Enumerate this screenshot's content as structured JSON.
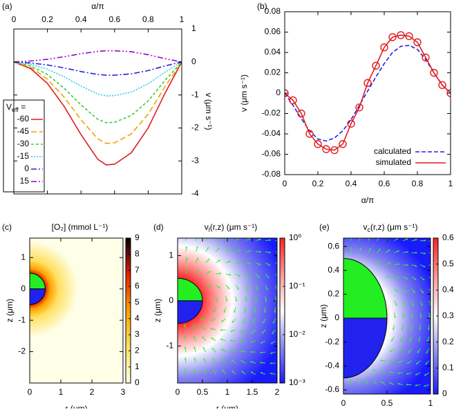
{
  "chart_data": [
    {
      "type": "line",
      "label": "(a)",
      "x_label": "α/π",
      "y_label": "v (μm s⁻¹)",
      "x_axis_position": "top",
      "y_axis_position": "right",
      "xlim": [
        0,
        1
      ],
      "ylim": [
        -4,
        1
      ],
      "xticks": [
        0,
        0.2,
        0.4,
        0.6,
        0.8,
        1
      ],
      "yticks": [
        1,
        0,
        -1,
        -2,
        -3,
        -4
      ],
      "legend_title": "V",
      "legend_title_sub": "eff",
      "legend_title_rest": " =",
      "legend_position": "bottom left",
      "x": [
        0,
        0.1,
        0.2,
        0.3,
        0.4,
        0.5,
        0.55,
        0.6,
        0.7,
        0.8,
        0.9,
        1
      ],
      "series": [
        {
          "name": "-60",
          "color": "#e31a1c",
          "dash": "",
          "values": [
            0,
            -0.2,
            -0.65,
            -1.35,
            -2.2,
            -2.95,
            -3.12,
            -3.1,
            -2.75,
            -2.0,
            -0.95,
            0
          ]
        },
        {
          "name": "-45",
          "color": "#f0a000",
          "dash": "8,4",
          "values": [
            0,
            -0.16,
            -0.52,
            -1.07,
            -1.75,
            -2.33,
            -2.47,
            -2.45,
            -2.18,
            -1.58,
            -0.75,
            0
          ]
        },
        {
          "name": "-30",
          "color": "#33cc33",
          "dash": "4,3",
          "values": [
            0,
            -0.12,
            -0.38,
            -0.8,
            -1.3,
            -1.74,
            -1.84,
            -1.83,
            -1.62,
            -1.18,
            -0.56,
            0
          ]
        },
        {
          "name": "-15",
          "color": "#22ccee",
          "dash": "2,2",
          "values": [
            0,
            -0.07,
            -0.22,
            -0.45,
            -0.73,
            -0.97,
            -1.03,
            -1.02,
            -0.91,
            -0.66,
            -0.31,
            0
          ]
        },
        {
          "name": "0",
          "color": "#2222dd",
          "dash": "8,3,2,3",
          "values": [
            0,
            -0.03,
            -0.09,
            -0.18,
            -0.29,
            -0.38,
            -0.4,
            -0.4,
            -0.36,
            -0.26,
            -0.12,
            0
          ]
        },
        {
          "name": "15",
          "color": "#9900cc",
          "dash": "8,3,2,3,2,3",
          "values": [
            0,
            0.03,
            0.08,
            0.16,
            0.25,
            0.32,
            0.34,
            0.34,
            0.31,
            0.22,
            0.1,
            0
          ]
        }
      ]
    },
    {
      "type": "line",
      "label": "(b)",
      "x_label": "α/π",
      "y_label": "v (μm s⁻¹)",
      "legend_position": "bottom right",
      "xlim": [
        0,
        1
      ],
      "ylim": [
        -0.08,
        0.08
      ],
      "xticks": [
        0,
        0.2,
        0.4,
        0.6,
        0.8,
        1
      ],
      "yticks": [
        -0.08,
        -0.06,
        -0.04,
        -0.02,
        0,
        0.02,
        0.04,
        0.06,
        0.08
      ],
      "x": [
        0,
        0.05,
        0.1,
        0.15,
        0.2,
        0.25,
        0.3,
        0.35,
        0.4,
        0.45,
        0.5,
        0.55,
        0.6,
        0.65,
        0.7,
        0.75,
        0.8,
        0.85,
        0.9,
        0.95,
        1
      ],
      "series": [
        {
          "name": "calculated",
          "color": "#2222dd",
          "dash": "6,3",
          "marker": "none",
          "values": [
            0,
            -0.012,
            -0.025,
            -0.037,
            -0.045,
            -0.047,
            -0.044,
            -0.037,
            -0.026,
            -0.012,
            0.002,
            0.016,
            0.029,
            0.04,
            0.046,
            0.047,
            0.043,
            0.033,
            0.02,
            0.008,
            0
          ]
        },
        {
          "name": "simulated",
          "color": "#e31a1c",
          "dash": "",
          "marker": "circle",
          "values": [
            0,
            -0.007,
            -0.02,
            -0.04,
            -0.05,
            -0.055,
            -0.056,
            -0.05,
            -0.03,
            -0.014,
            0.01,
            0.027,
            0.045,
            0.055,
            0.057,
            0.056,
            0.05,
            0.035,
            0.02,
            0.008,
            0
          ]
        }
      ]
    },
    {
      "type": "heatmap",
      "label": "(c)",
      "title": "[O₂] (mmol L⁻¹)",
      "x_label": "r (μm)",
      "y_label": "z (μm)",
      "xlim": [
        0,
        3
      ],
      "ylim": [
        -3,
        1.62
      ],
      "xticks": [
        0,
        1,
        2,
        3
      ],
      "yticks": [
        1,
        0,
        -1,
        -2
      ],
      "clim": [
        0,
        9
      ],
      "cticks": [
        0,
        1,
        2,
        3,
        4,
        5,
        6,
        7,
        8,
        9
      ],
      "colors": [
        "#ffffe8",
        "#ffe060",
        "#ffa000",
        "#e02000",
        "#000000"
      ]
    },
    {
      "type": "heatmap",
      "label": "(d)",
      "title": "v",
      "title_sub": "l",
      "title_rest": "(r,z) (μm s⁻¹)",
      "x_label": "r (μm)",
      "y_label": "z (μm)",
      "xlim": [
        0,
        2
      ],
      "ylim": [
        -1.82,
        1.39
      ],
      "xticks": [
        0,
        0.5,
        1,
        1.5,
        2
      ],
      "yticks": [
        1,
        0,
        -1
      ],
      "clim": [
        0.001,
        1
      ],
      "clog": true,
      "arrows": true,
      "cticks": [
        {
          "value": 1,
          "label": "10⁰"
        },
        {
          "value": 0.1,
          "label": "10⁻¹"
        },
        {
          "value": 0.01,
          "label": "10⁻²"
        },
        {
          "value": 0.001,
          "label": "10⁻³"
        }
      ],
      "colors": [
        "#1a1aff",
        "#8888ee",
        "#ffffff",
        "#ff9999",
        "#ff2020"
      ]
    },
    {
      "type": "heatmap",
      "label": "(e)",
      "title": "v",
      "title_sub": "c",
      "title_rest": "(r,z) (μm s⁻¹)",
      "x_label": "r (μm)",
      "y_label": "z (μm)",
      "xlim": [
        0,
        1
      ],
      "ylim": [
        -0.635,
        0.67
      ],
      "xticks": [
        0,
        0.5,
        1
      ],
      "yticks": [
        0.6,
        0.4,
        0.2,
        0,
        -0.2,
        -0.4,
        -0.6
      ],
      "clim": [
        0,
        0.6
      ],
      "arrows": true,
      "cticks": [
        0,
        0.1,
        0.2,
        0.3,
        0.4,
        0.5,
        0.6
      ],
      "colors": [
        "#1a1aff",
        "#8888ee",
        "#ffffff",
        "#ff9999",
        "#ff2020"
      ]
    }
  ]
}
